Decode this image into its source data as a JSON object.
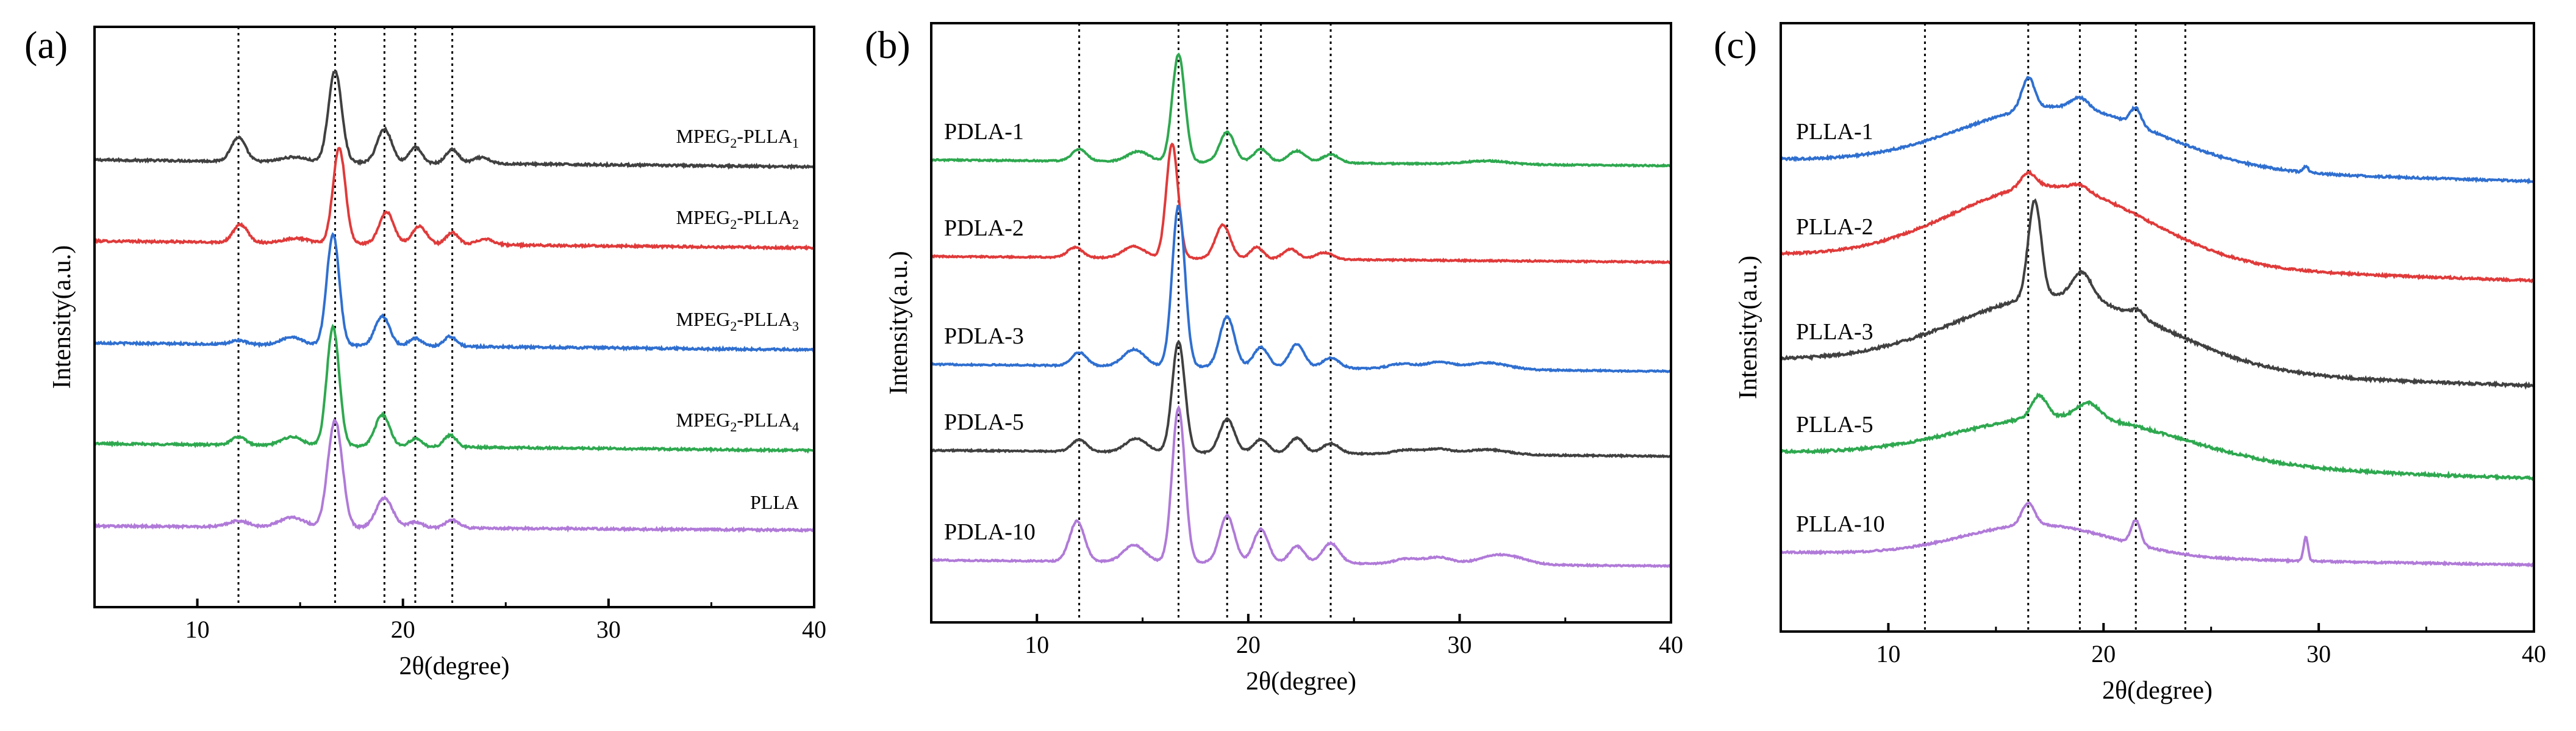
{
  "chart_data": [
    {
      "type": "line",
      "panel_label": "(a)",
      "xlabel": "2θ(degree)",
      "ylabel": "Intensity(a.u.)",
      "xlim": [
        5,
        40
      ],
      "x_ticks": [
        "10",
        "20",
        "30",
        "40"
      ],
      "grid": false,
      "legend": "labels above each curve",
      "reference_lines_2theta": [
        12.0,
        16.7,
        19.1,
        20.6,
        22.4
      ],
      "series": [
        {
          "name": "MPEG",
          "label_sub1": "2",
          "label_mid": "-PLLA",
          "label_sub2": "1",
          "color": "#404040",
          "baseline": 0.0,
          "drift": -0.05,
          "noise": 0.025,
          "peaks": [
            [
              12.0,
              0.6,
              0.35
            ],
            [
              14.7,
              0.12,
              0.6
            ],
            [
              16.7,
              2.3,
              0.32
            ],
            [
              19.1,
              0.85,
              0.35
            ],
            [
              20.6,
              0.4,
              0.3
            ],
            [
              22.4,
              0.35,
              0.3
            ],
            [
              23.8,
              0.15,
              0.4
            ]
          ]
        },
        {
          "name": "MPEG",
          "label_sub1": "2",
          "label_mid": "-PLLA",
          "label_sub2": "2",
          "color": "#e03a3a",
          "baseline": 0.0,
          "drift": -0.05,
          "noise": 0.025,
          "peaks": [
            [
              12.1,
              0.45,
              0.35
            ],
            [
              14.8,
              0.12,
              0.6
            ],
            [
              16.9,
              2.4,
              0.3
            ],
            [
              19.2,
              0.8,
              0.35
            ],
            [
              20.8,
              0.45,
              0.35
            ],
            [
              22.4,
              0.3,
              0.3
            ],
            [
              24.0,
              0.15,
              0.4
            ]
          ]
        },
        {
          "name": "MPEG",
          "label_sub1": "2",
          "label_mid": "-PLLA",
          "label_sub2": "3",
          "color": "#2f6fd0",
          "baseline": 0.0,
          "drift": -0.05,
          "noise": 0.025,
          "peaks": [
            [
              12.0,
              0.1,
              0.35
            ],
            [
              14.6,
              0.2,
              0.5
            ],
            [
              16.6,
              2.8,
              0.3
            ],
            [
              19.0,
              0.75,
              0.35
            ],
            [
              20.6,
              0.2,
              0.3
            ],
            [
              22.3,
              0.25,
              0.3
            ]
          ]
        },
        {
          "name": "MPEG",
          "label_sub1": "2",
          "label_mid": "-PLLA",
          "label_sub2": "4",
          "color": "#2ea84f",
          "baseline": 0.0,
          "drift": -0.05,
          "noise": 0.025,
          "peaks": [
            [
              12.0,
              0.2,
              0.35
            ],
            [
              14.6,
              0.22,
              0.5
            ],
            [
              16.6,
              3.0,
              0.3
            ],
            [
              19.0,
              0.8,
              0.35
            ],
            [
              20.6,
              0.2,
              0.3
            ],
            [
              22.3,
              0.3,
              0.3
            ]
          ]
        },
        {
          "name": "PLLA",
          "color": "#b07ad8",
          "baseline": 0.0,
          "drift": -0.03,
          "noise": 0.025,
          "peaks": [
            [
              12.0,
              0.15,
              0.5
            ],
            [
              14.6,
              0.25,
              0.6
            ],
            [
              16.7,
              2.7,
              0.35
            ],
            [
              19.1,
              0.75,
              0.4
            ],
            [
              20.6,
              0.15,
              0.35
            ],
            [
              22.4,
              0.2,
              0.35
            ]
          ]
        }
      ]
    },
    {
      "type": "line",
      "panel_label": "(b)",
      "xlabel": "2θ(degree)",
      "ylabel": "Intensity(a.u.)",
      "xlim": [
        5,
        40
      ],
      "x_ticks": [
        "10",
        "20",
        "30",
        "40"
      ],
      "grid": false,
      "legend": "labels left of each curve",
      "reference_lines_2theta": [
        12.0,
        16.7,
        19.0,
        20.6,
        23.9
      ],
      "series": [
        {
          "name": "PDLA-1",
          "color": "#2ea84f",
          "baseline": 0.0,
          "drift": -0.05,
          "noise": 0.02,
          "peaks": [
            [
              12.0,
              0.35,
              0.35
            ],
            [
              14.8,
              0.3,
              0.5
            ],
            [
              16.7,
              3.2,
              0.3
            ],
            [
              19.0,
              0.9,
              0.35
            ],
            [
              20.6,
              0.4,
              0.35
            ],
            [
              22.3,
              0.35,
              0.4
            ],
            [
              23.9,
              0.25,
              0.4
            ],
            [
              31.3,
              0.1,
              1.0
            ]
          ]
        },
        {
          "name": "PDLA-2",
          "color": "#e03a3a",
          "baseline": 0.0,
          "drift": -0.05,
          "noise": 0.02,
          "peaks": [
            [
              11.8,
              0.3,
              0.35
            ],
            [
              14.6,
              0.35,
              0.5
            ],
            [
              16.4,
              3.4,
              0.28
            ],
            [
              18.8,
              1.0,
              0.35
            ],
            [
              20.4,
              0.35,
              0.3
            ],
            [
              22.0,
              0.3,
              0.35
            ],
            [
              23.6,
              0.2,
              0.4
            ]
          ]
        },
        {
          "name": "PDLA-3",
          "color": "#2f6fd0",
          "baseline": 0.0,
          "drift": -0.06,
          "noise": 0.02,
          "peaks": [
            [
              12.0,
              0.4,
              0.35
            ],
            [
              14.6,
              0.5,
              0.5
            ],
            [
              16.7,
              4.8,
              0.3
            ],
            [
              19.0,
              1.5,
              0.35
            ],
            [
              20.6,
              0.6,
              0.35
            ],
            [
              22.3,
              0.7,
              0.35
            ],
            [
              23.9,
              0.3,
              0.4
            ],
            [
              27.3,
              0.15,
              0.6
            ],
            [
              29.0,
              0.2,
              0.6
            ],
            [
              31.3,
              0.2,
              1.0
            ]
          ]
        },
        {
          "name": "PDLA-5",
          "color": "#404040",
          "baseline": 0.0,
          "drift": -0.05,
          "noise": 0.02,
          "peaks": [
            [
              12.0,
              0.35,
              0.35
            ],
            [
              14.7,
              0.4,
              0.5
            ],
            [
              16.7,
              3.3,
              0.3
            ],
            [
              19.0,
              1.0,
              0.35
            ],
            [
              20.6,
              0.4,
              0.35
            ],
            [
              22.3,
              0.45,
              0.35
            ],
            [
              23.9,
              0.3,
              0.4
            ],
            [
              27.5,
              0.12,
              0.6
            ],
            [
              29.0,
              0.15,
              0.6
            ],
            [
              31.3,
              0.15,
              1.0
            ]
          ]
        },
        {
          "name": "PDLA-10",
          "color": "#b07ad8",
          "baseline": 0.0,
          "drift": -0.05,
          "noise": 0.02,
          "peaks": [
            [
              11.9,
              1.2,
              0.35
            ],
            [
              14.6,
              0.5,
              0.5
            ],
            [
              16.7,
              4.6,
              0.3
            ],
            [
              19.0,
              1.4,
              0.35
            ],
            [
              20.6,
              1.0,
              0.35
            ],
            [
              22.3,
              0.5,
              0.35
            ],
            [
              23.9,
              0.6,
              0.4
            ],
            [
              27.5,
              0.15,
              0.6
            ],
            [
              29.0,
              0.2,
              0.6
            ],
            [
              32.0,
              0.3,
              1.0
            ]
          ]
        }
      ]
    },
    {
      "type": "line",
      "panel_label": "(c)",
      "xlabel": "2θ(degree)",
      "ylabel": "Intensity(a.u.)",
      "xlim": [
        5,
        40
      ],
      "x_ticks": [
        "10",
        "20",
        "30",
        "40"
      ],
      "grid": false,
      "legend": "labels left of each curve",
      "reference_lines_2theta": [
        11.7,
        16.5,
        18.9,
        21.5,
        23.8
      ],
      "series": [
        {
          "name": "PLLA-1",
          "color": "#2f6fd0",
          "baseline": 0.0,
          "drift": -0.25,
          "noise": 0.04,
          "halo": [
            18.0,
            2.5,
            4.5
          ],
          "peaks": [
            [
              16.5,
              1.3,
              0.3
            ],
            [
              18.9,
              0.45,
              0.4
            ],
            [
              21.5,
              0.7,
              0.25
            ],
            [
              29.4,
              0.25,
              0.12
            ]
          ]
        },
        {
          "name": "PLLA-2",
          "color": "#e03a3a",
          "baseline": 0.0,
          "drift": -0.3,
          "noise": 0.04,
          "halo": [
            17.5,
            3.2,
            4.5
          ],
          "peaks": [
            [
              16.5,
              0.6,
              0.35
            ],
            [
              18.9,
              0.25,
              0.4
            ]
          ]
        },
        {
          "name": "PLLA-3",
          "color": "#404040",
          "baseline": 0.0,
          "drift": -0.3,
          "noise": 0.05,
          "halo": [
            18.0,
            3.0,
            4.8
          ],
          "peaks": [
            [
              16.8,
              4.0,
              0.3
            ],
            [
              19.0,
              1.1,
              0.45
            ],
            [
              21.6,
              0.3,
              0.3
            ]
          ]
        },
        {
          "name": "PLLA-5",
          "color": "#2ea84f",
          "baseline": 0.0,
          "drift": -0.3,
          "noise": 0.05,
          "halo": [
            18.5,
            1.9,
            5.0
          ],
          "peaks": [
            [
              17.0,
              0.9,
              0.35
            ],
            [
              19.3,
              0.6,
              0.5
            ]
          ]
        },
        {
          "name": "PLLA-10",
          "color": "#b07ad8",
          "baseline": 0.0,
          "drift": -0.15,
          "noise": 0.035,
          "halo": [
            17.0,
            1.3,
            3.5
          ],
          "peaks": [
            [
              16.5,
              0.9,
              0.3
            ],
            [
              21.5,
              1.0,
              0.22
            ],
            [
              29.4,
              1.0,
              0.1
            ]
          ]
        }
      ]
    }
  ]
}
